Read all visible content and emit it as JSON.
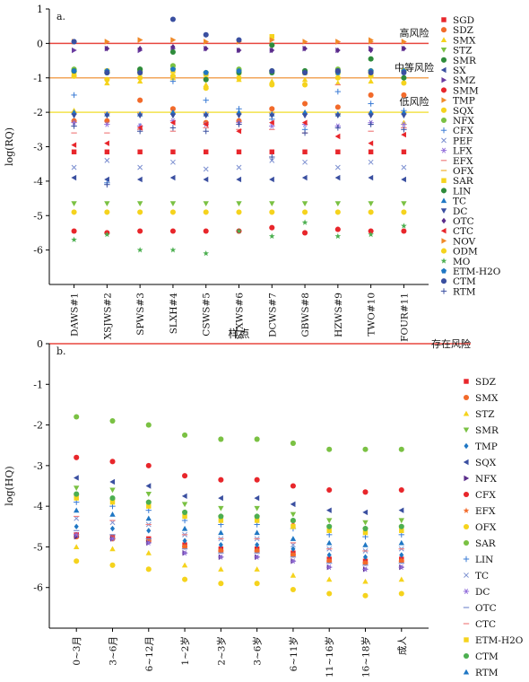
{
  "chart_data": [
    {
      "type": "scatter",
      "panel_label": "a.",
      "ylabel": "log(RQ)",
      "xlabel": "样点",
      "ylim": [
        -7,
        1
      ],
      "yticks": [
        -6,
        -5,
        -4,
        -3,
        -2,
        -1,
        0,
        1
      ],
      "categories": [
        "DAWS#1",
        "XSJWS#2",
        "SPWS#3",
        "SLXH#4",
        "CSWS#5",
        "SJXWS#6",
        "DCWS#7",
        "GBWS#8",
        "HZWS#9",
        "TWO#10",
        "FOUR#11"
      ],
      "thresholds": [
        {
          "value": 0,
          "label": "高风险",
          "color": "#e8473f"
        },
        {
          "value": -1,
          "label": "中等风险",
          "color": "#f2a65a"
        },
        {
          "value": -2,
          "label": "低风险",
          "color": "#f3e24b"
        }
      ],
      "series": [
        {
          "name": "SGD",
          "marker": "square",
          "color": "#e8262b",
          "values": [
            -3.15,
            -3.15,
            -3.15,
            -3.15,
            -3.15,
            -3.15,
            -3.15,
            -3.15,
            -3.15,
            -3.15,
            -3.15
          ]
        },
        {
          "name": "SDZ",
          "marker": "circle",
          "color": "#f26a2a",
          "values": [
            -2.25,
            -2.25,
            -1.65,
            -1.9,
            -2.3,
            -2.25,
            -1.9,
            -1.75,
            -1.85,
            -1.5,
            -1.5
          ]
        },
        {
          "name": "SMX",
          "marker": "triangle-up",
          "color": "#f5d31d",
          "values": [
            -1.95,
            -1.15,
            -1.1,
            -1.0,
            -1.2,
            -1.05,
            -1.1,
            -1.05,
            -1.15,
            -1.1,
            -2.3
          ]
        },
        {
          "name": "STZ",
          "marker": "triangle-down",
          "color": "#7ac143",
          "values": [
            -4.65,
            -4.65,
            -4.65,
            -4.65,
            -4.65,
            -4.65,
            -4.65,
            -4.65,
            -4.65,
            -4.65,
            -4.65
          ]
        },
        {
          "name": "SMR",
          "marker": "circle",
          "color": "#2e8b3b",
          "values": [
            -0.8,
            -0.85,
            -0.8,
            -0.75,
            -0.85,
            -0.8,
            -0.85,
            -0.8,
            -0.85,
            -0.8,
            -0.8
          ]
        },
        {
          "name": "SX",
          "marker": "triangle-left",
          "color": "#3a4fa0",
          "values": [
            -3.9,
            -3.95,
            -3.95,
            -3.9,
            -3.95,
            -3.95,
            -3.95,
            -3.9,
            -3.9,
            -3.9,
            -3.95
          ]
        },
        {
          "name": "SMZ",
          "marker": "triangle-right",
          "color": "#6a3ca0",
          "values": [
            -0.2,
            -0.15,
            -0.2,
            -0.15,
            -0.15,
            -0.2,
            -0.2,
            -0.15,
            -0.2,
            -0.15,
            -0.15
          ]
        },
        {
          "name": "SMM",
          "marker": "circle",
          "color": "#e8262b",
          "values": [
            -5.45,
            -5.5,
            -5.45,
            -5.45,
            -5.45,
            -5.45,
            -5.35,
            -5.5,
            -5.4,
            -5.45,
            -5.45
          ]
        },
        {
          "name": "TMP",
          "marker": "triangle-right",
          "color": "#f08a2a",
          "values": [
            0.05,
            0.05,
            0.1,
            0.1,
            0.05,
            0.05,
            0.1,
            0.05,
            0.05,
            0.1,
            0.05
          ]
        },
        {
          "name": "SQX",
          "marker": "circle",
          "color": "#f5d31d",
          "values": [
            -0.95,
            -1.05,
            -1.0,
            -0.95,
            -1.3,
            -1.0,
            -1.2,
            -1.2,
            -1.0,
            -0.95,
            -1.15
          ]
        },
        {
          "name": "NFX",
          "marker": "circle",
          "color": "#7ac143",
          "values": [
            -0.75,
            -0.8,
            -0.75,
            -0.65,
            -0.9,
            -0.75,
            -0.8,
            -0.85,
            -0.75,
            -0.8,
            -0.8
          ]
        },
        {
          "name": "CFX",
          "marker": "plus",
          "color": "#3a7bd5",
          "values": [
            -1.5,
            -4.05,
            -2.4,
            -1.1,
            -1.65,
            -1.9,
            -2.2,
            -2.5,
            -1.4,
            -1.75,
            -1.95
          ]
        },
        {
          "name": "PEF",
          "marker": "cross",
          "color": "#7b8fd0",
          "values": [
            -3.6,
            -3.4,
            -3.6,
            -3.45,
            -3.65,
            -3.6,
            -3.4,
            -3.45,
            -3.6,
            -3.45,
            -3.6
          ]
        },
        {
          "name": "LFX",
          "marker": "asterisk",
          "color": "#9370db",
          "values": [
            -2.3,
            -2.35,
            -2.4,
            -2.25,
            -2.35,
            -2.3,
            -2.4,
            -2.35,
            -2.4,
            -2.3,
            -2.35
          ]
        },
        {
          "name": "EFX",
          "marker": "dash",
          "color": "#f08080",
          "values": [
            -2.6,
            -2.6,
            -2.5,
            -2.55,
            -2.45,
            -2.5,
            -2.5,
            -2.6,
            -1.2,
            -2.55,
            -2.45
          ]
        },
        {
          "name": "OFX",
          "marker": "dash",
          "color": "#f0b030",
          "values": [
            -2.0,
            -2.0,
            -2.0,
            -2.0,
            -2.0,
            -2.0,
            -2.0,
            -2.0,
            -2.05,
            -2.0,
            -2.0
          ]
        },
        {
          "name": "SAR",
          "marker": "square",
          "color": "#f5d31d",
          "values": [
            -0.85,
            -0.8,
            -0.85,
            -0.8,
            -0.9,
            -0.85,
            0.2,
            -0.85,
            -0.85,
            -0.85,
            -0.8
          ]
        },
        {
          "name": "LIN",
          "marker": "circle",
          "color": "#2e8b3b",
          "values": [
            -0.8,
            -0.85,
            -0.75,
            -0.25,
            -1.05,
            -0.85,
            -0.05,
            -0.8,
            -0.8,
            -0.45,
            -1.0
          ]
        },
        {
          "name": "TC",
          "marker": "triangle-up",
          "color": "#1f77c4",
          "values": [
            -2.0,
            -2.05,
            -2.05,
            -2.0,
            -2.05,
            -2.0,
            -2.05,
            -2.0,
            -2.05,
            -2.0,
            -2.0
          ]
        },
        {
          "name": "DC",
          "marker": "triangle-down",
          "color": "#3a4fa0",
          "values": [
            -2.1,
            -2.1,
            -2.1,
            -2.1,
            -2.1,
            -2.1,
            -2.1,
            -2.1,
            -2.1,
            -2.1,
            -2.1
          ]
        },
        {
          "name": "OTC",
          "marker": "diamond",
          "color": "#5a2c8a",
          "values": [
            0.05,
            -0.15,
            -0.15,
            -0.1,
            -0.15,
            -0.2,
            -0.2,
            -0.15,
            -0.2,
            -0.2,
            -0.15
          ]
        },
        {
          "name": "CTC",
          "marker": "triangle-left",
          "color": "#e8262b",
          "values": [
            -2.95,
            -2.9,
            -2.45,
            -2.3,
            -2.35,
            -2.55,
            -2.3,
            -2.3,
            -2.7,
            -2.9,
            -2.65
          ]
        },
        {
          "name": "NOV",
          "marker": "triangle-right",
          "color": "#f08a2a",
          "values": [
            0.05,
            0.05,
            0.1,
            0.1,
            0.05,
            0.05,
            0.1,
            0.05,
            0.05,
            0.05,
            0.05
          ]
        },
        {
          "name": "ODM",
          "marker": "circle",
          "color": "#f5d31d",
          "values": [
            -4.9,
            -4.9,
            -4.9,
            -4.9,
            -4.9,
            -4.9,
            -4.9,
            -4.9,
            -4.9,
            -4.9,
            -4.9
          ]
        },
        {
          "name": "MO",
          "marker": "star",
          "color": "#4caf50",
          "values": [
            -5.7,
            -5.55,
            -6.0,
            -6.0,
            -6.1,
            -5.45,
            -5.6,
            -5.2,
            -5.6,
            -5.55,
            -5.3
          ]
        },
        {
          "name": "ETM-H2O",
          "marker": "pentagon",
          "color": "#1f77c4",
          "values": [
            -0.8,
            -0.8,
            -0.85,
            -0.75,
            -0.85,
            -0.8,
            -0.8,
            -0.85,
            -0.85,
            -0.8,
            -0.8
          ]
        },
        {
          "name": "CTM",
          "marker": "circle",
          "color": "#3a4fa0",
          "values": [
            0.05,
            -0.85,
            -0.85,
            0.7,
            0.25,
            0.1,
            -0.8,
            -0.85,
            -0.8,
            -0.85,
            -0.85
          ]
        },
        {
          "name": "RTM",
          "marker": "plus",
          "color": "#3a4fa0",
          "values": [
            -2.4,
            -4.1,
            -2.55,
            -2.45,
            -2.55,
            -2.35,
            -3.3,
            -2.6,
            -2.45,
            -2.35,
            -2.5
          ]
        }
      ]
    },
    {
      "type": "scatter",
      "panel_label": "b.",
      "ylabel": "log(HQ)",
      "ylim": [
        -7,
        0
      ],
      "yticks": [
        -6,
        -5,
        -4,
        -3,
        -2,
        -1,
        0
      ],
      "categories": [
        "0~3月",
        "3~6月",
        "6~12月",
        "1~2岁",
        "2~3岁",
        "3~6岁",
        "6~11岁",
        "11~16岁",
        "16~18岁",
        "成人"
      ],
      "thresholds": [
        {
          "value": 0,
          "label": "存在风险",
          "color": "#e8473f"
        }
      ],
      "series": [
        {
          "name": "SDZ",
          "marker": "square",
          "color": "#e8262b",
          "values": [
            -4.7,
            -4.75,
            -4.8,
            -4.95,
            -5.05,
            -5.05,
            -5.15,
            -5.3,
            -5.35,
            -5.3
          ]
        },
        {
          "name": "SMX",
          "marker": "circle",
          "color": "#f26a2a",
          "values": [
            -4.75,
            -4.8,
            -4.85,
            -5.0,
            -5.1,
            -5.1,
            -5.2,
            -5.35,
            -5.4,
            -5.35
          ]
        },
        {
          "name": "STZ",
          "marker": "triangle-up",
          "color": "#f5d31d",
          "values": [
            -5.0,
            -5.05,
            -5.15,
            -5.45,
            -5.55,
            -5.55,
            -5.7,
            -5.8,
            -5.85,
            -5.8
          ]
        },
        {
          "name": "SMR",
          "marker": "triangle-down",
          "color": "#7ac143",
          "values": [
            -3.55,
            -3.6,
            -3.7,
            -3.95,
            -4.05,
            -4.05,
            -4.2,
            -4.35,
            -4.4,
            -4.35
          ]
        },
        {
          "name": "TMP",
          "marker": "diamond",
          "color": "#1f77c4",
          "values": [
            -4.5,
            -4.55,
            -4.6,
            -4.85,
            -4.95,
            -4.95,
            -5.05,
            -5.2,
            -5.25,
            -5.2
          ]
        },
        {
          "name": "SQX",
          "marker": "triangle-left",
          "color": "#3a4fa0",
          "values": [
            -3.3,
            -3.4,
            -3.5,
            -3.75,
            -3.8,
            -3.8,
            -3.95,
            -4.1,
            -4.15,
            -4.1
          ]
        },
        {
          "name": "NFX",
          "marker": "triangle-right",
          "color": "#5a2c8a",
          "values": [
            -4.75,
            -4.8,
            -4.9,
            -5.15,
            -5.25,
            -5.25,
            -5.35,
            -5.5,
            -5.55,
            -5.5
          ]
        },
        {
          "name": "CFX",
          "marker": "circle",
          "color": "#e8262b",
          "values": [
            -2.8,
            -2.9,
            -3.0,
            -3.25,
            -3.35,
            -3.35,
            -3.5,
            -3.6,
            -3.65,
            -3.6
          ]
        },
        {
          "name": "EFX",
          "marker": "star",
          "color": "#f26a2a",
          "values": [
            -3.75,
            -3.85,
            -3.9,
            -4.15,
            -4.25,
            -4.25,
            -4.4,
            -4.5,
            -4.55,
            -4.5
          ]
        },
        {
          "name": "OFX",
          "marker": "circle",
          "color": "#f5d31d",
          "values": [
            -5.35,
            -5.45,
            -5.55,
            -5.8,
            -5.9,
            -5.9,
            -6.05,
            -6.15,
            -6.2,
            -6.15
          ]
        },
        {
          "name": "SAR",
          "marker": "circle",
          "color": "#7ac143",
          "values": [
            -1.8,
            -1.9,
            -2.0,
            -2.25,
            -2.35,
            -2.35,
            -2.45,
            -2.6,
            -2.6,
            -2.6
          ]
        },
        {
          "name": "LIN",
          "marker": "plus",
          "color": "#3a7bd5",
          "values": [
            -3.9,
            -4.0,
            -4.1,
            -4.35,
            -4.45,
            -4.45,
            -4.55,
            -4.7,
            -4.75,
            -4.7
          ]
        },
        {
          "name": "TC",
          "marker": "cross",
          "color": "#7b8fd0",
          "values": [
            -4.3,
            -4.4,
            -4.45,
            -4.7,
            -4.8,
            -4.8,
            -4.95,
            -5.05,
            -5.1,
            -5.05
          ]
        },
        {
          "name": "DC",
          "marker": "asterisk",
          "color": "#9370db",
          "values": [
            -4.7,
            -4.8,
            -4.9,
            -5.15,
            -5.25,
            -5.25,
            -5.35,
            -5.5,
            -5.55,
            -5.5
          ]
        },
        {
          "name": "OTC",
          "marker": "dash",
          "color": "#7b8fd0",
          "values": [
            -4.6,
            -4.7,
            -4.8,
            -5.05,
            -5.15,
            -5.15,
            -5.25,
            -5.4,
            -5.45,
            -5.4
          ]
        },
        {
          "name": "CTC",
          "marker": "dash",
          "color": "#f08080",
          "values": [
            -4.25,
            -4.35,
            -4.45,
            -4.7,
            -4.8,
            -4.8,
            -4.9,
            -5.05,
            -5.1,
            -5.05
          ]
        },
        {
          "name": "ETM-H2O",
          "marker": "square",
          "color": "#f5d31d",
          "values": [
            -3.8,
            -3.9,
            -4.0,
            -4.25,
            -4.35,
            -4.35,
            -4.5,
            -4.6,
            -4.65,
            -4.6
          ]
        },
        {
          "name": "CTM",
          "marker": "circle",
          "color": "#4caf50",
          "values": [
            -3.7,
            -3.8,
            -3.9,
            -4.15,
            -4.25,
            -4.25,
            -4.35,
            -4.5,
            -4.55,
            -4.5
          ]
        },
        {
          "name": "RTM",
          "marker": "triangle-up",
          "color": "#1f77c4",
          "values": [
            -4.1,
            -4.2,
            -4.3,
            -4.55,
            -4.65,
            -4.65,
            -4.8,
            -4.9,
            -4.95,
            -4.9
          ]
        }
      ]
    }
  ]
}
